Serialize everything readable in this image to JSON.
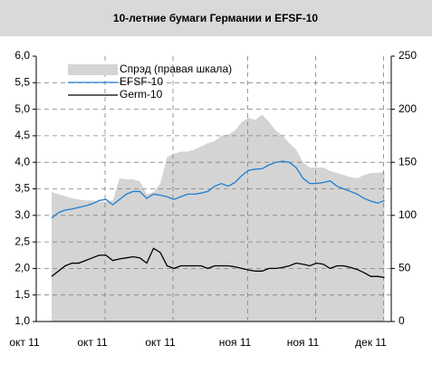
{
  "chart_data": {
    "type": "line",
    "title": "10-летние бумаги Германии и EFSF-10",
    "categories": [
      "окт 11",
      null,
      null,
      null,
      null,
      null,
      null,
      null,
      null,
      null,
      "окт 11",
      null,
      null,
      null,
      null,
      null,
      null,
      null,
      null,
      null,
      "окт 11",
      null,
      null,
      null,
      null,
      null,
      null,
      null,
      null,
      null,
      null,
      "ноя 11",
      null,
      null,
      null,
      null,
      null,
      null,
      null,
      null,
      null,
      "ноя 11",
      null,
      null,
      null,
      null,
      null,
      null,
      null,
      null,
      null,
      "дек 11",
      null,
      null
    ],
    "series": [
      {
        "name": "Спрэд (правая шкала)",
        "color": "#d4d4d4",
        "axis": "y2",
        "kind": "area",
        "values": [
          null,
          null,
          null,
          null,
          122,
          120,
          118,
          116,
          115,
          114,
          114,
          113,
          113,
          114,
          135,
          134,
          134,
          132,
          120,
          122,
          130,
          155,
          158,
          160,
          160,
          162,
          165,
          168,
          170,
          175,
          176,
          180,
          188,
          192,
          190,
          195,
          188,
          180,
          175,
          168,
          162,
          150,
          145,
          145,
          145,
          142,
          140,
          138,
          136,
          135,
          138,
          140,
          140,
          141
        ]
      },
      {
        "name": "EFSF-10",
        "color": "#1f7fd0",
        "values": [
          null,
          null,
          null,
          null,
          2.95,
          3.05,
          3.1,
          3.12,
          3.15,
          3.18,
          3.22,
          3.28,
          3.3,
          3.2,
          3.3,
          3.4,
          3.45,
          3.45,
          3.32,
          3.4,
          3.38,
          3.35,
          3.3,
          3.35,
          3.4,
          3.4,
          3.42,
          3.45,
          3.55,
          3.6,
          3.55,
          3.62,
          3.75,
          3.85,
          3.87,
          3.88,
          3.95,
          4.0,
          4.02,
          4.0,
          3.9,
          3.7,
          3.6,
          3.6,
          3.62,
          3.65,
          3.55,
          3.5,
          3.45,
          3.4,
          3.32,
          3.27,
          3.23,
          3.28
        ]
      },
      {
        "name": "Germ-10",
        "color": "#000000",
        "values": [
          null,
          null,
          null,
          null,
          1.85,
          1.95,
          2.05,
          2.1,
          2.1,
          2.15,
          2.2,
          2.25,
          2.25,
          2.15,
          2.18,
          2.2,
          2.22,
          2.2,
          2.1,
          2.38,
          2.3,
          2.05,
          2.0,
          2.05,
          2.05,
          2.05,
          2.05,
          2.0,
          2.05,
          2.05,
          2.05,
          2.03,
          2.0,
          1.97,
          1.95,
          1.95,
          2.0,
          2.0,
          2.02,
          2.05,
          2.1,
          2.08,
          2.05,
          2.1,
          2.08,
          2.0,
          2.05,
          2.05,
          2.02,
          1.98,
          1.92,
          1.85,
          1.85,
          1.83
        ]
      }
    ],
    "ylim": [
      1,
      6
    ],
    "yticks": [
      {
        "value": 1,
        "label": "1,0"
      },
      {
        "value": 1.5,
        "label": "1,5"
      },
      {
        "value": 2,
        "label": "2,0"
      },
      {
        "value": 2.5,
        "label": "2,5"
      },
      {
        "value": 3,
        "label": "3,0"
      },
      {
        "value": 3.5,
        "label": "3,5"
      },
      {
        "value": 4,
        "label": "4,0"
      },
      {
        "value": 4.5,
        "label": "4,5"
      },
      {
        "value": 5,
        "label": "5,0"
      },
      {
        "value": 5.5,
        "label": "5,5"
      },
      {
        "value": 6,
        "label": "6,0"
      }
    ],
    "y2lim": [
      0,
      250
    ],
    "y2ticks": [
      0,
      50,
      100,
      150,
      200,
      250
    ],
    "grid": true,
    "legend": "upper left"
  }
}
